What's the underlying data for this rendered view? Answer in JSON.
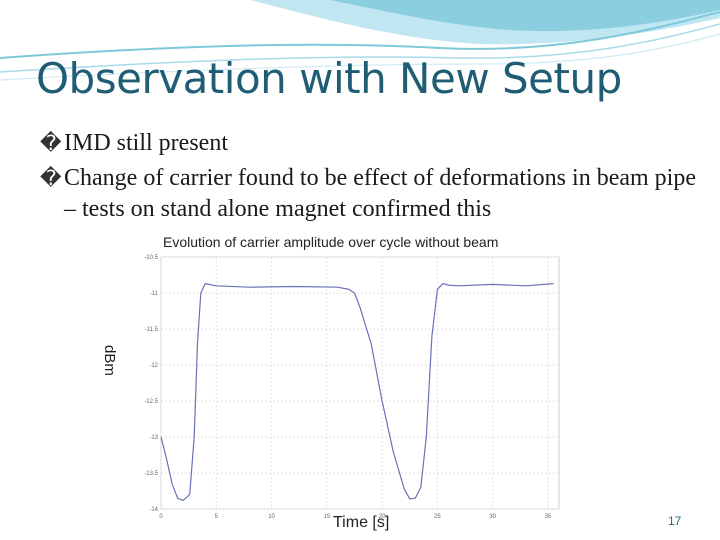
{
  "slide": {
    "title": "Observation with New Setup",
    "bullet_glyph": "�",
    "bullets": [
      "IMD still present",
      "Change of carrier found to be effect of deformations in beam pipe – tests on stand alone magnet confirmed this"
    ],
    "page_number": "17"
  },
  "colors": {
    "title": "#1f5d75",
    "wave": "#7ec8dc",
    "trace": "#6a72b8"
  },
  "chart_data": {
    "type": "line",
    "title": "Evolution of carrier amplitude over cycle without beam",
    "xlabel": "Time [s]",
    "ylabel": "dBm",
    "xlim": [
      0,
      36
    ],
    "ylim": [
      -14,
      -10.5
    ],
    "yticks": [
      "-10.5",
      "-11",
      "-11.5",
      "-12",
      "-12.5",
      "-13",
      "-13.5",
      "-14"
    ],
    "xticks": [
      "0",
      "5",
      "10",
      "15",
      "20",
      "25",
      "30",
      "35"
    ],
    "grid": true,
    "series": [
      {
        "x": [
          0,
          0.5,
          1,
          1.5,
          2,
          2.6,
          3,
          3.3,
          3.6,
          4,
          5,
          8,
          12,
          16,
          17,
          17.5,
          18,
          19,
          20,
          21,
          22,
          22.5,
          23,
          23.5,
          24,
          24.5,
          25,
          25.5,
          26,
          27,
          30,
          33,
          35.5
        ],
        "y": [
          -13.0,
          -13.3,
          -13.65,
          -13.85,
          -13.88,
          -13.8,
          -13.0,
          -11.7,
          -11.0,
          -10.87,
          -10.9,
          -10.92,
          -10.91,
          -10.92,
          -10.95,
          -11.0,
          -11.2,
          -11.7,
          -12.5,
          -13.2,
          -13.72,
          -13.86,
          -13.85,
          -13.7,
          -13.0,
          -11.6,
          -10.95,
          -10.87,
          -10.89,
          -10.9,
          -10.88,
          -10.9,
          -10.87
        ]
      }
    ]
  }
}
